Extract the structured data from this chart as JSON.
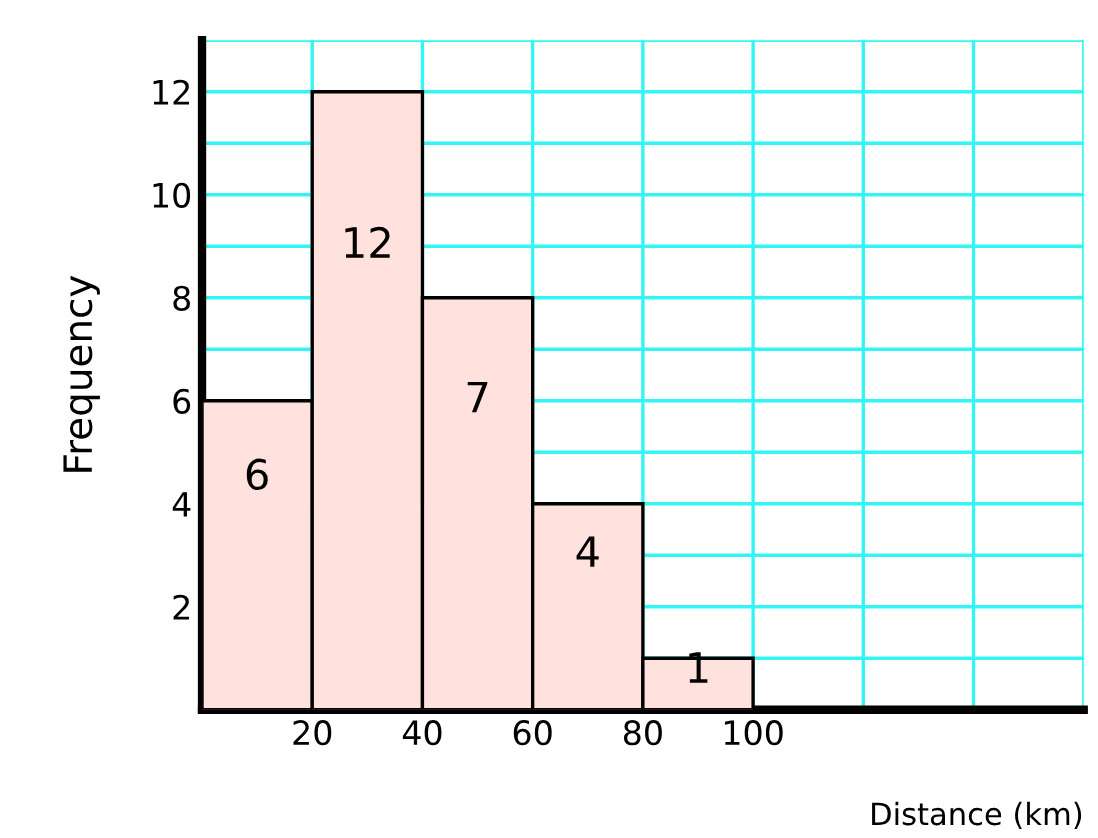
{
  "chart_data": {
    "type": "histogram",
    "xlabel": "Distance (km)",
    "ylabel": "Frequency",
    "bins": [
      0,
      20,
      40,
      60,
      80,
      100
    ],
    "values": [
      6,
      12,
      8,
      4,
      1
    ],
    "value_labels": [
      "6",
      "12",
      null,
      "4",
      "1"
    ],
    "annotations": [
      "7"
    ],
    "color": "#ffe1de",
    "xlim": [
      0,
      160
    ],
    "xticks": [
      20,
      40,
      60,
      80,
      100,
      {
        "value": 120,
        "label": null
      },
      {
        "value": 140,
        "label": null
      },
      {
        "value": 160,
        "label": null
      }
    ],
    "ylim": [
      0,
      13
    ],
    "yticks": [
      {
        "value": 1,
        "label": null
      },
      2,
      {
        "value": 3,
        "label": null
      },
      4,
      {
        "value": 5,
        "label": null
      },
      6,
      {
        "value": 7,
        "label": null
      },
      8,
      {
        "value": 9,
        "label": null
      },
      10,
      {
        "value": 11,
        "label": null
      },
      12,
      {
        "value": 13,
        "label": null
      }
    ],
    "grid": true
  }
}
